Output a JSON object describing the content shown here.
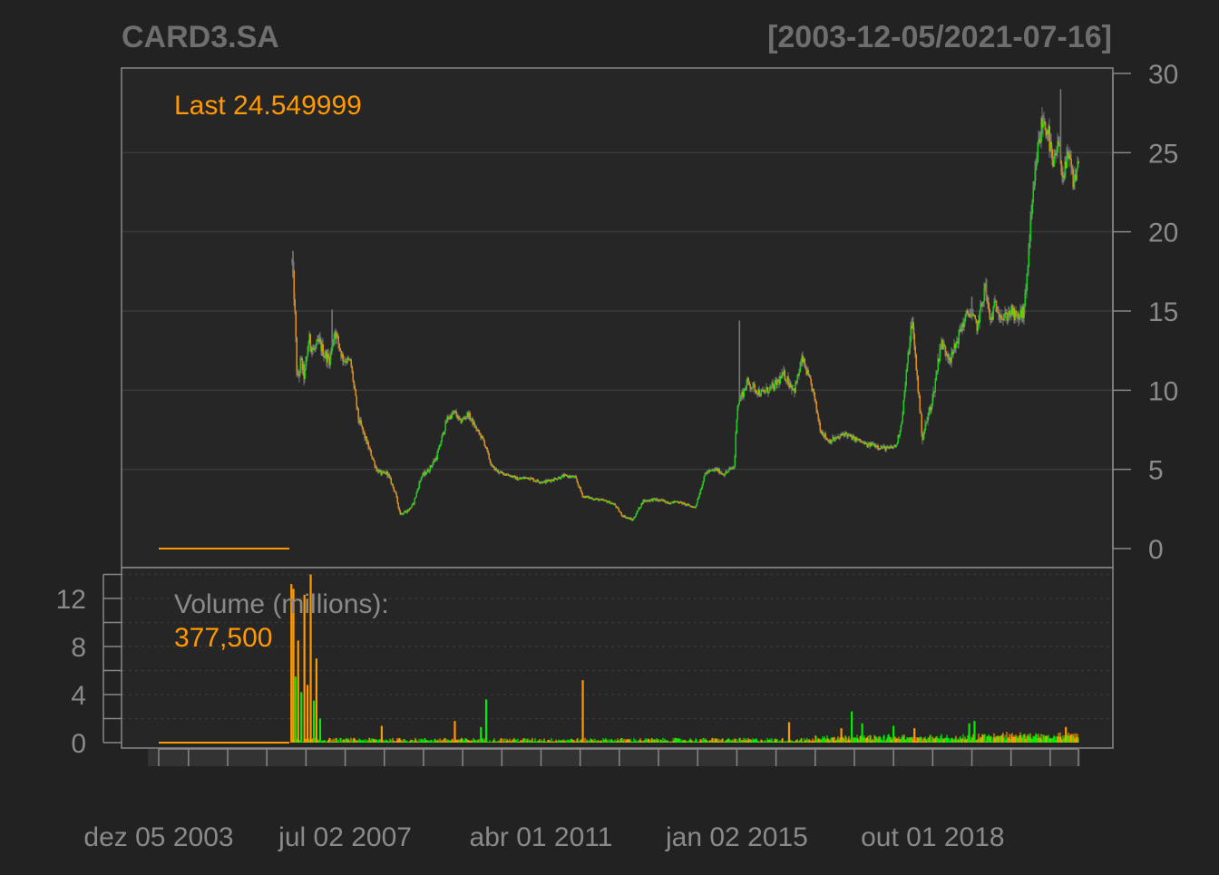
{
  "colors": {
    "background": "#222222",
    "panel": "#262626",
    "border": "#888888",
    "grid": "#3a3a3a",
    "text": "#8a8a8a",
    "title": "#6e6e6e",
    "up": "#00ee00",
    "down": "#ff9900",
    "wick": "#777777"
  },
  "chart_data": {
    "type": "candlestick",
    "title": "CARD3.SA",
    "date_range": "[2003-12-05/2021-07-16]",
    "price_panel": {
      "ylim": [
        -1,
        30
      ],
      "y_ticks": [
        0,
        5,
        10,
        15,
        20,
        25,
        30
      ],
      "y_tick_labels": [
        "0",
        "5",
        "10",
        "15",
        "20",
        "25",
        "30"
      ],
      "last_label": "Last 24.549999",
      "x_range": [
        2003.93,
        2021.54
      ],
      "pre_listing_flat": {
        "x_start": 2003.93,
        "x_end": 2006.43,
        "value": 0
      },
      "close_series": {
        "x": [
          2006.48,
          2006.52,
          2006.58,
          2006.65,
          2006.72,
          2006.8,
          2006.9,
          2007.0,
          2007.1,
          2007.2,
          2007.3,
          2007.45,
          2007.6,
          2007.75,
          2007.9,
          2008.1,
          2008.2,
          2008.3,
          2008.45,
          2008.55,
          2008.7,
          2008.8,
          2008.95,
          2009.1,
          2009.25,
          2009.45,
          2009.6,
          2009.7,
          2009.85,
          2010.0,
          2010.15,
          2010.3,
          2010.45,
          2010.6,
          2010.8,
          2011.0,
          2011.15,
          2011.3,
          2011.5,
          2011.7,
          2011.9,
          2012.05,
          2012.2,
          2012.35,
          2012.5,
          2012.65,
          2012.8,
          2013.0,
          2013.2,
          2013.4,
          2013.6,
          2013.75,
          2013.85,
          2014.0,
          2014.2,
          2014.4,
          2014.6,
          2014.75,
          2014.95,
          2015.0,
          2015.2,
          2015.45,
          2015.7,
          2015.9,
          2016.1,
          2016.25,
          2016.45,
          2016.6,
          2016.75,
          2016.95,
          2017.05,
          2017.2,
          2017.35,
          2017.5,
          2017.6,
          2017.75,
          2017.9,
          2018.05,
          2018.15,
          2018.35,
          2018.55,
          2018.75,
          2018.9,
          2019.1,
          2019.3,
          2019.45,
          2019.6,
          2019.75,
          2019.85,
          2019.95,
          2020.1,
          2020.25,
          2020.35,
          2020.5,
          2020.6,
          2020.75,
          2020.85,
          2020.95,
          2021.05,
          2021.15,
          2021.25,
          2021.35,
          2021.45,
          2021.54
        ],
        "close": [
          18.2,
          16.0,
          10.5,
          11.8,
          10.8,
          13.2,
          12.5,
          13.0,
          12.3,
          11.9,
          13.8,
          12.0,
          11.8,
          8.2,
          6.8,
          5.0,
          4.7,
          4.8,
          3.6,
          2.2,
          2.4,
          2.8,
          4.5,
          5.0,
          5.8,
          8.2,
          8.6,
          8.0,
          8.5,
          7.6,
          6.8,
          5.2,
          4.8,
          4.7,
          4.4,
          4.5,
          4.3,
          4.2,
          4.4,
          4.6,
          4.5,
          3.3,
          3.2,
          3.1,
          3.0,
          2.8,
          2.1,
          1.8,
          3.0,
          3.1,
          3.0,
          2.9,
          3.0,
          2.8,
          2.6,
          4.8,
          5.0,
          4.7,
          5.2,
          9.0,
          10.5,
          9.8,
          10.2,
          11.0,
          10.0,
          12.0,
          10.0,
          7.5,
          6.8,
          7.0,
          7.3,
          7.0,
          6.8,
          6.5,
          6.6,
          6.4,
          6.3,
          6.5,
          8.0,
          14.5,
          7.0,
          9.5,
          13.0,
          12.0,
          14.0,
          15.0,
          14.0,
          16.5,
          14.3,
          15.5,
          14.5,
          15.0,
          14.5,
          15.0,
          19.5,
          25.0,
          27.0,
          26.5,
          24.0,
          25.5,
          23.5,
          24.8,
          23.0,
          24.55
        ],
        "swing": [
          0.8,
          1.2,
          0.9,
          1.0,
          0.9,
          1.0,
          0.8,
          0.9,
          0.8,
          0.7,
          0.9,
          0.6,
          0.5,
          0.5,
          0.4,
          0.3,
          0.3,
          0.3,
          0.25,
          0.2,
          0.2,
          0.2,
          0.3,
          0.3,
          0.35,
          0.4,
          0.4,
          0.35,
          0.4,
          0.3,
          0.3,
          0.25,
          0.2,
          0.2,
          0.2,
          0.2,
          0.2,
          0.2,
          0.2,
          0.2,
          0.2,
          0.2,
          0.15,
          0.15,
          0.15,
          0.15,
          0.15,
          0.15,
          0.2,
          0.2,
          0.2,
          0.15,
          0.15,
          0.15,
          0.15,
          0.25,
          0.25,
          0.25,
          0.3,
          0.6,
          0.6,
          0.5,
          0.6,
          0.6,
          0.6,
          0.6,
          0.5,
          0.4,
          0.35,
          0.35,
          0.35,
          0.3,
          0.3,
          0.3,
          0.3,
          0.3,
          0.3,
          0.3,
          0.5,
          0.9,
          0.6,
          0.6,
          0.8,
          0.7,
          0.8,
          0.8,
          0.7,
          0.9,
          0.8,
          0.8,
          0.8,
          0.8,
          0.8,
          0.9,
          1.2,
          1.4,
          1.5,
          1.4,
          1.2,
          1.2,
          1.2,
          1.2,
          1.1,
          1.0
        ],
        "spikes": [
          {
            "x": 2006.5,
            "high": 18.8
          },
          {
            "x": 2007.25,
            "high": 15.1
          },
          {
            "x": 2015.05,
            "high": 14.4
          },
          {
            "x": 2019.5,
            "high": 15.9
          },
          {
            "x": 2019.78,
            "high": 17.0
          },
          {
            "x": 2021.2,
            "high": 29.0
          }
        ]
      }
    },
    "volume_panel": {
      "ylim": [
        0,
        14
      ],
      "y_ticks": [
        0,
        4,
        8,
        12
      ],
      "y_tick_labels": [
        "0",
        "4",
        "8",
        "12"
      ],
      "minor_ticks": [
        2,
        6,
        10,
        14
      ],
      "title": "Volume (millions):",
      "last_value": "377,500",
      "spikes": [
        {
          "x": 2006.47,
          "value": 13.2,
          "dir": "down"
        },
        {
          "x": 2006.51,
          "value": 12.8,
          "dir": "down"
        },
        {
          "x": 2006.55,
          "value": 5.5,
          "dir": "up"
        },
        {
          "x": 2006.6,
          "value": 8.5,
          "dir": "down"
        },
        {
          "x": 2006.66,
          "value": 4.2,
          "dir": "up"
        },
        {
          "x": 2006.72,
          "value": 12.3,
          "dir": "down"
        },
        {
          "x": 2006.78,
          "value": 4.8,
          "dir": "down"
        },
        {
          "x": 2006.84,
          "value": 14.0,
          "dir": "down"
        },
        {
          "x": 2006.9,
          "value": 3.5,
          "dir": "up"
        },
        {
          "x": 2006.95,
          "value": 7.0,
          "dir": "down"
        },
        {
          "x": 2007.02,
          "value": 2.0,
          "dir": "up"
        },
        {
          "x": 2008.2,
          "value": 1.4,
          "dir": "down"
        },
        {
          "x": 2009.6,
          "value": 1.8,
          "dir": "down"
        },
        {
          "x": 2010.1,
          "value": 1.3,
          "dir": "up"
        },
        {
          "x": 2010.2,
          "value": 3.6,
          "dir": "up"
        },
        {
          "x": 2012.05,
          "value": 5.2,
          "dir": "down"
        },
        {
          "x": 2016.0,
          "value": 1.7,
          "dir": "down"
        },
        {
          "x": 2017.0,
          "value": 1.2,
          "dir": "down"
        },
        {
          "x": 2017.2,
          "value": 2.6,
          "dir": "up"
        },
        {
          "x": 2017.4,
          "value": 1.6,
          "dir": "up"
        },
        {
          "x": 2018.0,
          "value": 1.4,
          "dir": "up"
        },
        {
          "x": 2018.4,
          "value": 1.2,
          "dir": "down"
        },
        {
          "x": 2019.45,
          "value": 1.6,
          "dir": "up"
        },
        {
          "x": 2019.55,
          "value": 1.8,
          "dir": "up"
        },
        {
          "x": 2021.3,
          "value": 1.3,
          "dir": "down"
        }
      ]
    },
    "x_axis": {
      "labels": [
        "dez 05 2003",
        "jul 02 2007",
        "abr 01 2011",
        "jan 02 2015",
        "out 01 2018"
      ],
      "label_positions": [
        2003.93,
        2007.5,
        2011.25,
        2015.0,
        2018.75
      ],
      "tick_positions": [
        2003.93,
        2004.5,
        2005.25,
        2006.0,
        2006.75,
        2007.5,
        2008.25,
        2009.0,
        2009.75,
        2010.5,
        2011.25,
        2012.0,
        2012.75,
        2013.5,
        2014.25,
        2015.0,
        2015.75,
        2016.5,
        2017.25,
        2018.0,
        2018.75,
        2019.5,
        2020.25,
        2021.0,
        2021.54
      ]
    }
  }
}
